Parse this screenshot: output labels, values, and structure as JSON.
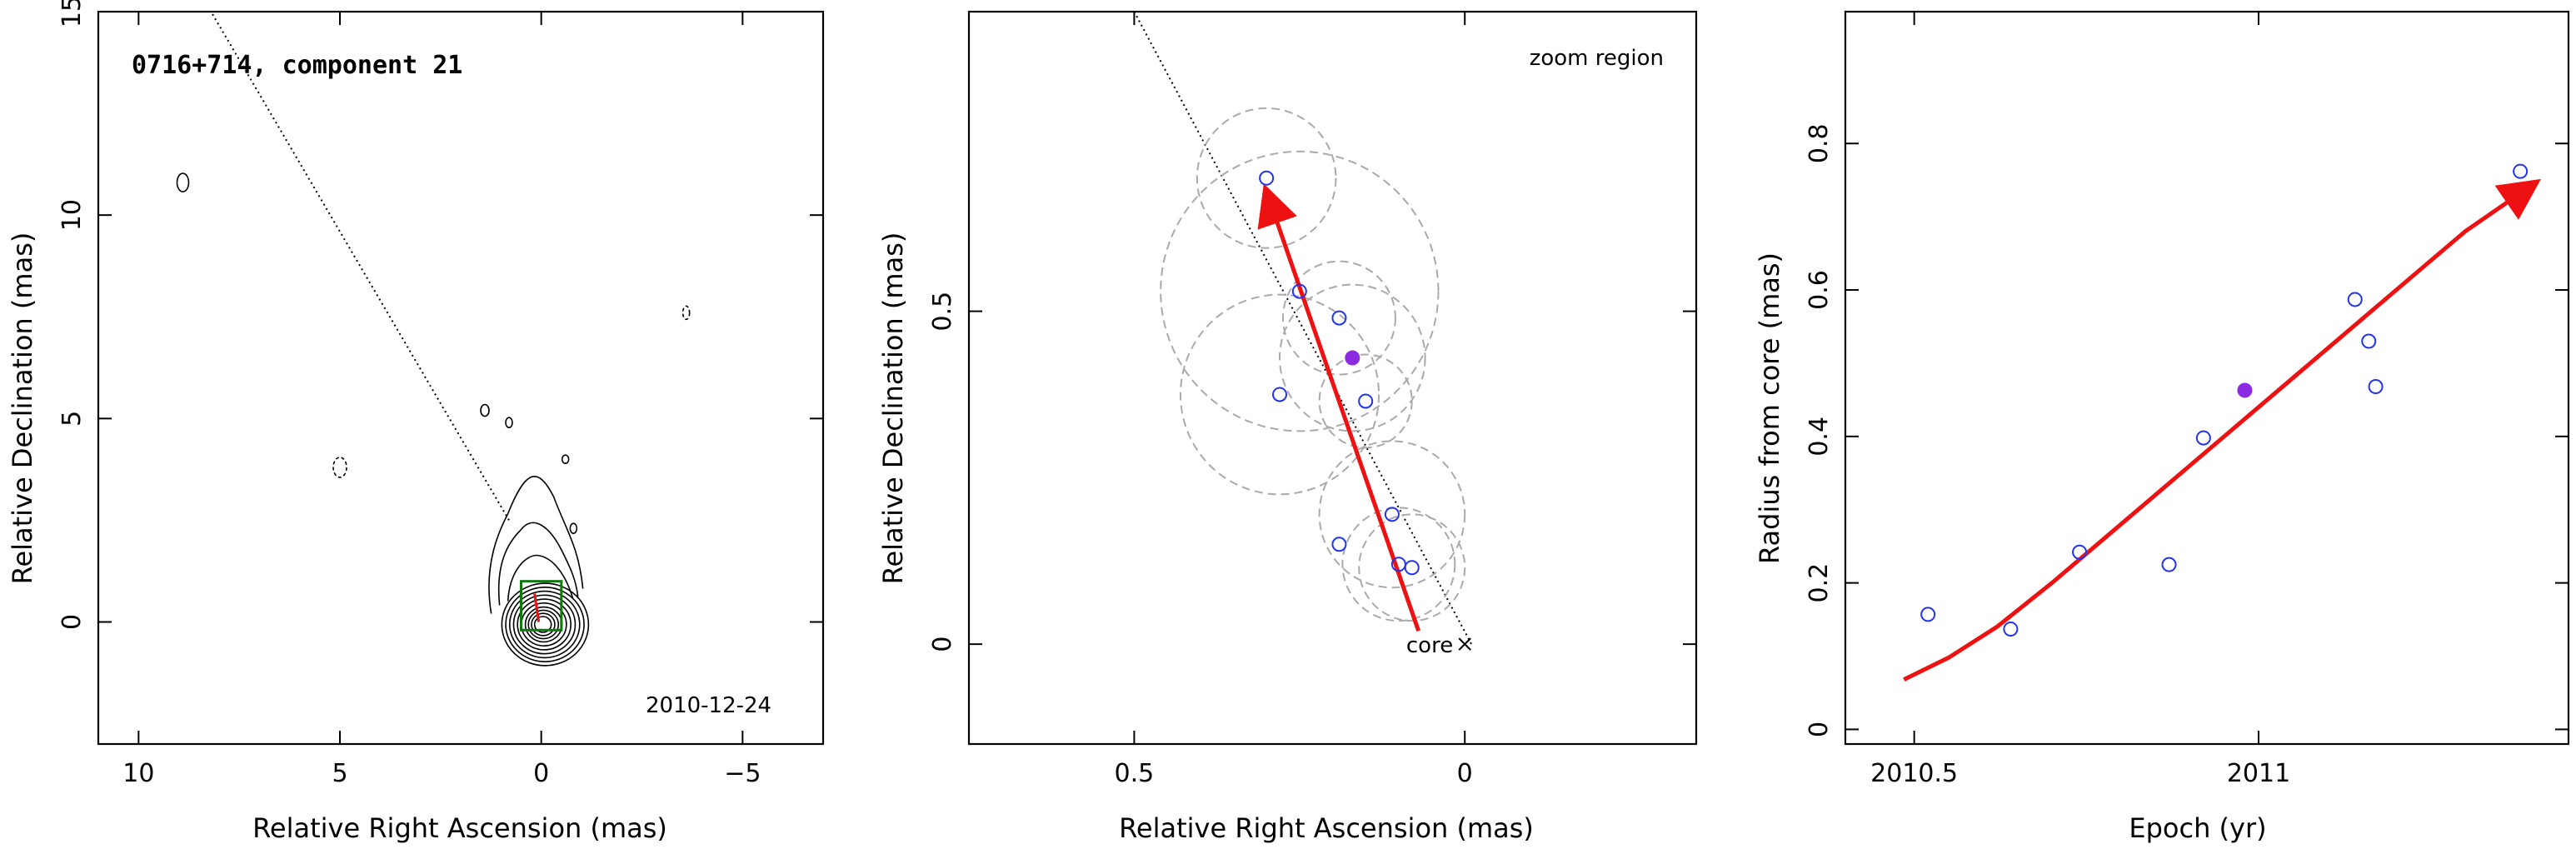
{
  "colors": {
    "blue": "#2233ee",
    "purple": "#8a2be2",
    "red": "#ee1111",
    "green": "#117711",
    "gray": "#aaaaaa"
  },
  "chart_data": [
    {
      "type": "contour",
      "title": "0716+714, component 21",
      "date_label": "2010-12-24",
      "xlabel": "Relative Right Ascension (mas)",
      "ylabel": "Relative Declination (mas)",
      "xlim": [
        11,
        -7
      ],
      "ylim": [
        -3,
        15
      ],
      "xticks": [
        10,
        5,
        0,
        -5
      ],
      "yticks": [
        0,
        5,
        10,
        15
      ],
      "jet_axis_line": [
        [
          0.8,
          2.5
        ],
        [
          8.2,
          15
        ]
      ],
      "zoom_box": [
        [
          -0.5,
          -0.2
        ],
        [
          0.5,
          1.0
        ]
      ]
    },
    {
      "type": "scatter",
      "annotation": "zoom region",
      "core_label": "core",
      "xlabel": "Relative Right Ascension (mas)",
      "ylabel": "Relative Declination (mas)",
      "xlim": [
        0.75,
        -0.35
      ],
      "ylim": [
        -0.15,
        0.95
      ],
      "xticks": [
        0.5,
        0
      ],
      "yticks": [
        0,
        0.5
      ],
      "points": [
        {
          "x": 0.3,
          "y": 0.7,
          "r": 0.105
        },
        {
          "x": 0.25,
          "y": 0.53,
          "r": 0.21
        },
        {
          "x": 0.19,
          "y": 0.49,
          "r": 0.085
        },
        {
          "x": 0.28,
          "y": 0.375,
          "r": 0.15
        },
        {
          "x": 0.15,
          "y": 0.365,
          "r": 0.07
        },
        {
          "x": 0.11,
          "y": 0.195,
          "r": 0.11
        },
        {
          "x": 0.19,
          "y": 0.15,
          "r": 0.0
        },
        {
          "x": 0.1,
          "y": 0.12,
          "r": 0.085
        },
        {
          "x": 0.08,
          "y": 0.115,
          "r": 0.08
        }
      ],
      "highlight": {
        "x": 0.17,
        "y": 0.43,
        "r": 0.11
      },
      "fit_arrow": [
        [
          0.07,
          0.02
        ],
        [
          0.3,
          0.68
        ]
      ],
      "jet_axis_line": [
        [
          0.5,
          0.95
        ],
        [
          -0.01,
          0.0
        ]
      ],
      "core": [
        0,
        0
      ]
    },
    {
      "type": "scatter",
      "xlabel": "Epoch (yr)",
      "ylabel": "Radius from core (mas)",
      "xlim": [
        2010.4,
        2011.45
      ],
      "ylim": [
        -0.02,
        0.98
      ],
      "xticks": [
        2010.5,
        2011
      ],
      "yticks": [
        0,
        0.2,
        0.4,
        0.6,
        0.8
      ],
      "points": [
        {
          "x": 2010.52,
          "y": 0.157
        },
        {
          "x": 2010.64,
          "y": 0.137
        },
        {
          "x": 2010.74,
          "y": 0.242
        },
        {
          "x": 2010.87,
          "y": 0.225
        },
        {
          "x": 2010.92,
          "y": 0.398
        },
        {
          "x": 2011.14,
          "y": 0.587
        },
        {
          "x": 2011.16,
          "y": 0.53
        },
        {
          "x": 2011.17,
          "y": 0.468
        },
        {
          "x": 2011.38,
          "y": 0.762
        }
      ],
      "highlight": {
        "x": 2010.98,
        "y": 0.463
      },
      "fit_curve": [
        [
          2010.485,
          0.068
        ],
        [
          2010.55,
          0.098
        ],
        [
          2010.62,
          0.14
        ],
        [
          2010.7,
          0.2
        ],
        [
          2010.8,
          0.28
        ],
        [
          2010.9,
          0.36
        ],
        [
          2011.0,
          0.44
        ],
        [
          2011.1,
          0.52
        ],
        [
          2011.2,
          0.6
        ],
        [
          2011.3,
          0.68
        ],
        [
          2011.4,
          0.745
        ]
      ]
    }
  ]
}
